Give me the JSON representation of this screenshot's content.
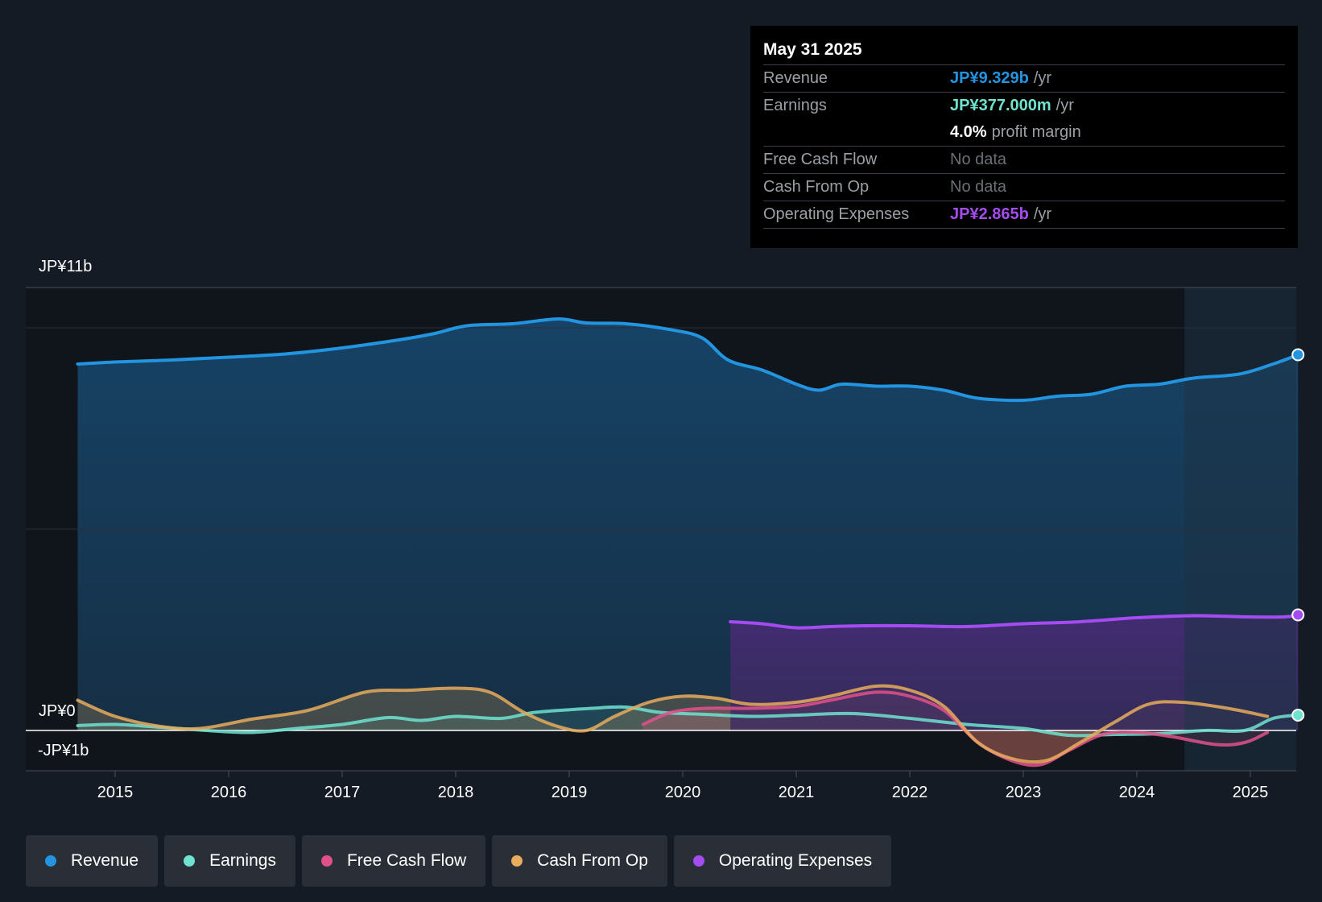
{
  "tooltip": {
    "date": "May 31 2025",
    "rows": {
      "revenue": {
        "label": "Revenue",
        "value": "JP¥9.329b",
        "unit": "/yr"
      },
      "earnings": {
        "label": "Earnings",
        "value": "JP¥377.000m",
        "unit": "/yr"
      },
      "margin": {
        "value": "4.0%",
        "unit": "profit margin"
      },
      "fcf": {
        "label": "Free Cash Flow",
        "value": "No data"
      },
      "cfo": {
        "label": "Cash From Op",
        "value": "No data"
      },
      "opex": {
        "label": "Operating Expenses",
        "value": "JP¥2.865b",
        "unit": "/yr"
      }
    }
  },
  "axis": {
    "top_label": "JP¥11b",
    "zero_label": "JP¥0",
    "neg_label": "-JP¥1b"
  },
  "legend": [
    {
      "label": "Revenue",
      "color": "#2394df"
    },
    {
      "label": "Earnings",
      "color": "#6fe3d0"
    },
    {
      "label": "Free Cash Flow",
      "color": "#e0518a"
    },
    {
      "label": "Cash From Op",
      "color": "#e8ac5c"
    },
    {
      "label": "Operating Expenses",
      "color": "#a54cf0"
    }
  ],
  "chart_data": {
    "type": "area",
    "title": "",
    "xlabel": "",
    "ylabel": "",
    "xlim": [
      2014.66,
      2025.42
    ],
    "ylim": [
      -1,
      11
    ],
    "x_ticks": [
      "2015",
      "2016",
      "2017",
      "2018",
      "2019",
      "2020",
      "2021",
      "2022",
      "2023",
      "2024",
      "2025"
    ],
    "forecast_shade_start": 2024.42,
    "series": [
      {
        "name": "Revenue",
        "color": "#2394df",
        "points": [
          [
            2014.67,
            9.1
          ],
          [
            2015.0,
            9.15
          ],
          [
            2015.5,
            9.2
          ],
          [
            2016.0,
            9.27
          ],
          [
            2016.5,
            9.35
          ],
          [
            2017.0,
            9.5
          ],
          [
            2017.5,
            9.7
          ],
          [
            2017.8,
            9.85
          ],
          [
            2018.1,
            10.05
          ],
          [
            2018.5,
            10.1
          ],
          [
            2018.9,
            10.22
          ],
          [
            2019.15,
            10.12
          ],
          [
            2019.5,
            10.1
          ],
          [
            2019.9,
            9.95
          ],
          [
            2020.17,
            9.75
          ],
          [
            2020.4,
            9.2
          ],
          [
            2020.7,
            8.95
          ],
          [
            2021.0,
            8.6
          ],
          [
            2021.2,
            8.45
          ],
          [
            2021.4,
            8.6
          ],
          [
            2021.7,
            8.55
          ],
          [
            2022.0,
            8.55
          ],
          [
            2022.3,
            8.45
          ],
          [
            2022.6,
            8.25
          ],
          [
            2023.0,
            8.2
          ],
          [
            2023.3,
            8.3
          ],
          [
            2023.6,
            8.35
          ],
          [
            2023.9,
            8.55
          ],
          [
            2024.2,
            8.6
          ],
          [
            2024.5,
            8.75
          ],
          [
            2024.9,
            8.85
          ],
          [
            2025.2,
            9.1
          ],
          [
            2025.42,
            9.33
          ]
        ]
      },
      {
        "name": "Earnings",
        "color": "#6fe3d0",
        "points": [
          [
            2014.67,
            0.12
          ],
          [
            2015.0,
            0.15
          ],
          [
            2015.4,
            0.08
          ],
          [
            2015.8,
            0.0
          ],
          [
            2016.2,
            -0.05
          ],
          [
            2016.6,
            0.05
          ],
          [
            2017.0,
            0.15
          ],
          [
            2017.4,
            0.32
          ],
          [
            2017.7,
            0.25
          ],
          [
            2018.0,
            0.35
          ],
          [
            2018.4,
            0.3
          ],
          [
            2018.7,
            0.45
          ],
          [
            2019.2,
            0.55
          ],
          [
            2019.5,
            0.58
          ],
          [
            2019.8,
            0.45
          ],
          [
            2020.2,
            0.4
          ],
          [
            2020.6,
            0.35
          ],
          [
            2021.0,
            0.38
          ],
          [
            2021.5,
            0.42
          ],
          [
            2022.0,
            0.3
          ],
          [
            2022.5,
            0.15
          ],
          [
            2023.0,
            0.05
          ],
          [
            2023.4,
            -0.12
          ],
          [
            2023.8,
            -0.1
          ],
          [
            2024.2,
            -0.08
          ],
          [
            2024.6,
            0.0
          ],
          [
            2024.95,
            0.0
          ],
          [
            2025.2,
            0.3
          ],
          [
            2025.42,
            0.38
          ]
        ]
      },
      {
        "name": "Free Cash Flow",
        "color": "#e0518a",
        "points": [
          [
            2019.65,
            0.15
          ],
          [
            2019.9,
            0.45
          ],
          [
            2020.2,
            0.55
          ],
          [
            2020.6,
            0.55
          ],
          [
            2021.0,
            0.6
          ],
          [
            2021.3,
            0.75
          ],
          [
            2021.7,
            0.95
          ],
          [
            2022.0,
            0.85
          ],
          [
            2022.3,
            0.5
          ],
          [
            2022.6,
            -0.3
          ],
          [
            2022.9,
            -0.75
          ],
          [
            2023.15,
            -0.85
          ],
          [
            2023.4,
            -0.5
          ],
          [
            2023.7,
            -0.1
          ],
          [
            2024.0,
            -0.05
          ],
          [
            2024.3,
            -0.15
          ],
          [
            2024.7,
            -0.35
          ],
          [
            2024.95,
            -0.3
          ],
          [
            2025.15,
            -0.05
          ]
        ]
      },
      {
        "name": "Cash From Op",
        "color": "#e8ac5c",
        "points": [
          [
            2014.67,
            0.75
          ],
          [
            2015.0,
            0.35
          ],
          [
            2015.4,
            0.1
          ],
          [
            2015.75,
            0.05
          ],
          [
            2016.2,
            0.28
          ],
          [
            2016.7,
            0.5
          ],
          [
            2017.2,
            0.95
          ],
          [
            2017.6,
            1.0
          ],
          [
            2018.0,
            1.05
          ],
          [
            2018.3,
            0.95
          ],
          [
            2018.6,
            0.45
          ],
          [
            2018.9,
            0.1
          ],
          [
            2019.15,
            0.0
          ],
          [
            2019.4,
            0.35
          ],
          [
            2019.7,
            0.7
          ],
          [
            2020.0,
            0.85
          ],
          [
            2020.3,
            0.8
          ],
          [
            2020.6,
            0.65
          ],
          [
            2021.0,
            0.7
          ],
          [
            2021.3,
            0.85
          ],
          [
            2021.7,
            1.1
          ],
          [
            2022.0,
            1.0
          ],
          [
            2022.3,
            0.6
          ],
          [
            2022.6,
            -0.3
          ],
          [
            2022.9,
            -0.7
          ],
          [
            2023.2,
            -0.75
          ],
          [
            2023.5,
            -0.3
          ],
          [
            2023.8,
            0.2
          ],
          [
            2024.1,
            0.65
          ],
          [
            2024.4,
            0.7
          ],
          [
            2024.8,
            0.55
          ],
          [
            2025.15,
            0.35
          ]
        ]
      },
      {
        "name": "Operating Expenses",
        "color": "#a54cf0",
        "points": [
          [
            2020.42,
            2.7
          ],
          [
            2020.7,
            2.65
          ],
          [
            2021.0,
            2.55
          ],
          [
            2021.3,
            2.58
          ],
          [
            2021.6,
            2.6
          ],
          [
            2022.0,
            2.6
          ],
          [
            2022.5,
            2.58
          ],
          [
            2023.0,
            2.65
          ],
          [
            2023.5,
            2.7
          ],
          [
            2024.0,
            2.8
          ],
          [
            2024.5,
            2.85
          ],
          [
            2025.0,
            2.82
          ],
          [
            2025.3,
            2.82
          ],
          [
            2025.42,
            2.87
          ]
        ]
      }
    ]
  }
}
